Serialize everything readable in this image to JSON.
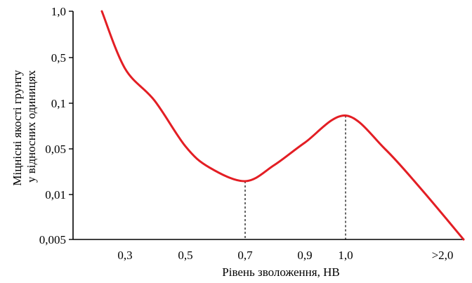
{
  "chart_data": {
    "type": "line",
    "xlabel": "Рівень зволоження, НВ",
    "ylabel_lines": [
      "Міцнісні якості грунту",
      "у відносних одиницях"
    ],
    "x_ticks": [
      "0,3",
      "0,5",
      "0,7",
      "0,9",
      "1,0",
      ">2,0"
    ],
    "y_ticks": [
      "1,0",
      "0,5",
      "0,1",
      "0,05",
      "0,01",
      "0,005"
    ],
    "grid": false,
    "series": [
      {
        "color": "#e31e24",
        "points": [
          {
            "x": "0,2",
            "y": 1.0
          },
          {
            "x": "0,3",
            "y": 0.34
          },
          {
            "x": "0,4",
            "y": 0.11
          },
          {
            "x": "0,5",
            "y": 0.052
          },
          {
            "x": "0,6",
            "y": 0.026
          },
          {
            "x": "0,7",
            "y": 0.016
          },
          {
            "x": "0,8",
            "y": 0.028
          },
          {
            "x": "0,9",
            "y": 0.055
          },
          {
            "x": "1,0",
            "y": 0.083
          },
          {
            "x": "1,2",
            "y": 0.05
          },
          {
            "x": "1,5",
            "y": 0.012
          },
          {
            "x": ">2,0",
            "y": 0.005
          }
        ]
      }
    ],
    "markers": [
      {
        "x": "0,7",
        "y": 0.016
      },
      {
        "x": "1,0",
        "y": 0.083
      }
    ]
  }
}
